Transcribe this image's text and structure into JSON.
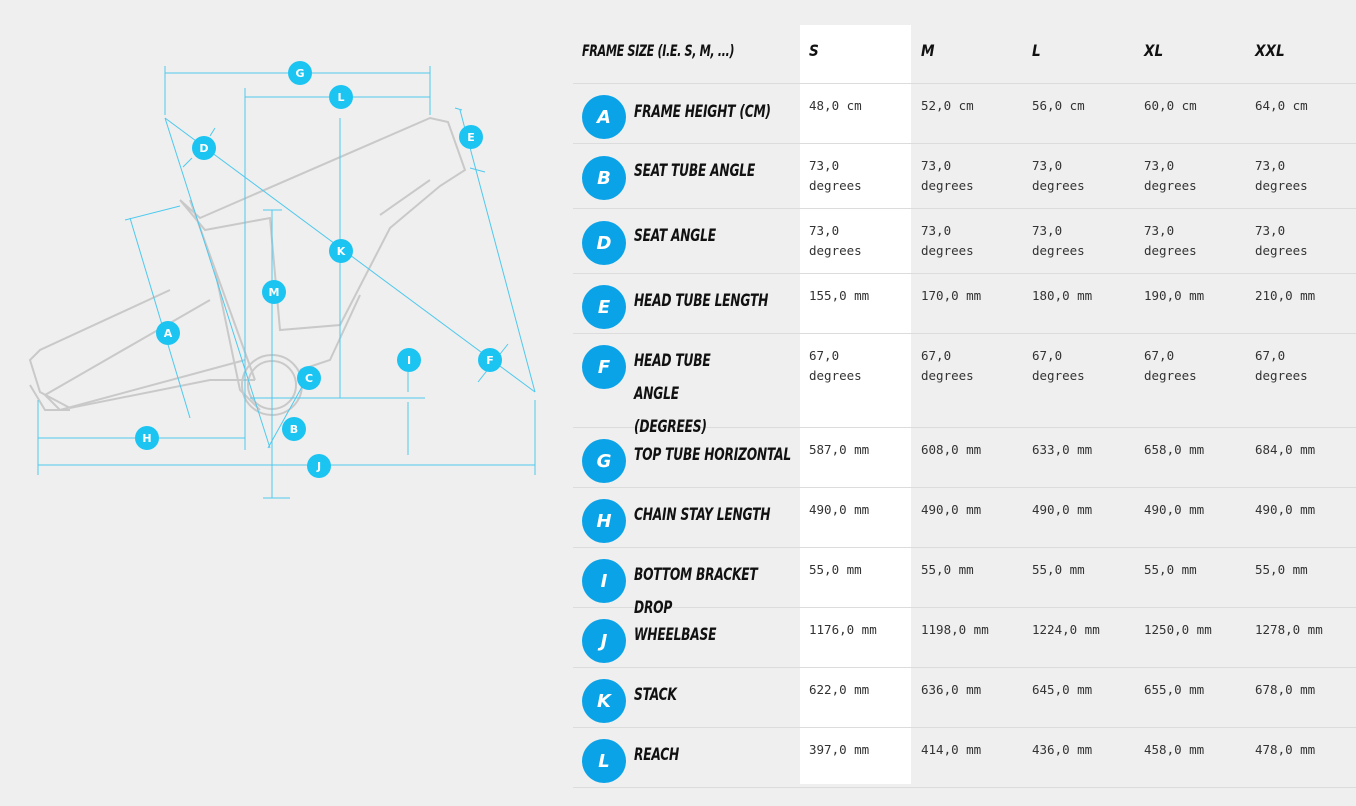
{
  "colors": {
    "accent": "#0aa3e8",
    "dimension_line": "#4ec9ee",
    "frame_outline": "#c9c9c9",
    "background": "#efefef",
    "highlight_column": "#ffffff"
  },
  "diagram": {
    "markers": [
      "G",
      "L",
      "D",
      "E",
      "K",
      "M",
      "A",
      "C",
      "I",
      "F",
      "B",
      "H",
      "J"
    ]
  },
  "table": {
    "header_label": "FRAME SIZE (I.E. S, M, ...)",
    "sizes": [
      "S",
      "M",
      "L",
      "XL",
      "XXL"
    ],
    "rows": [
      {
        "letter": "A",
        "name": "FRAME HEIGHT (CM)",
        "values": [
          "48,0 cm",
          "52,0 cm",
          "56,0 cm",
          "60,0 cm",
          "64,0 cm"
        ]
      },
      {
        "letter": "B",
        "name": "SEAT TUBE ANGLE",
        "values": [
          "73,0 degrees",
          "73,0 degrees",
          "73,0 degrees",
          "73,0 degrees",
          "73,0 degrees"
        ]
      },
      {
        "letter": "D",
        "name": "SEAT ANGLE",
        "values": [
          "73,0 degrees",
          "73,0 degrees",
          "73,0 degrees",
          "73,0 degrees",
          "73,0 degrees"
        ]
      },
      {
        "letter": "E",
        "name": "HEAD TUBE LENGTH",
        "values": [
          "155,0 mm",
          "170,0 mm",
          "180,0 mm",
          "190,0 mm",
          "210,0 mm"
        ]
      },
      {
        "letter": "F",
        "name": "HEAD TUBE ANGLE (DEGREES)",
        "values": [
          "67,0 degrees",
          "67,0 degrees",
          "67,0 degrees",
          "67,0 degrees",
          "67,0 degrees"
        ]
      },
      {
        "letter": "G",
        "name": "TOP TUBE HORIZONTAL",
        "values": [
          "587,0 mm",
          "608,0 mm",
          "633,0 mm",
          "658,0 mm",
          "684,0 mm"
        ]
      },
      {
        "letter": "H",
        "name": "CHAIN STAY LENGTH",
        "values": [
          "490,0 mm",
          "490,0 mm",
          "490,0 mm",
          "490,0 mm",
          "490,0 mm"
        ]
      },
      {
        "letter": "I",
        "name": "BOTTOM BRACKET DROP",
        "values": [
          "55,0 mm",
          "55,0 mm",
          "55,0 mm",
          "55,0 mm",
          "55,0 mm"
        ]
      },
      {
        "letter": "J",
        "name": "WHEELBASE",
        "values": [
          "1176,0 mm",
          "1198,0 mm",
          "1224,0 mm",
          "1250,0 mm",
          "1278,0 mm"
        ]
      },
      {
        "letter": "K",
        "name": "STACK",
        "values": [
          "622,0 mm",
          "636,0 mm",
          "645,0 mm",
          "655,0 mm",
          "678,0 mm"
        ]
      },
      {
        "letter": "L",
        "name": "REACH",
        "values": [
          "397,0 mm",
          "414,0 mm",
          "436,0 mm",
          "458,0 mm",
          "478,0 mm"
        ]
      }
    ]
  }
}
